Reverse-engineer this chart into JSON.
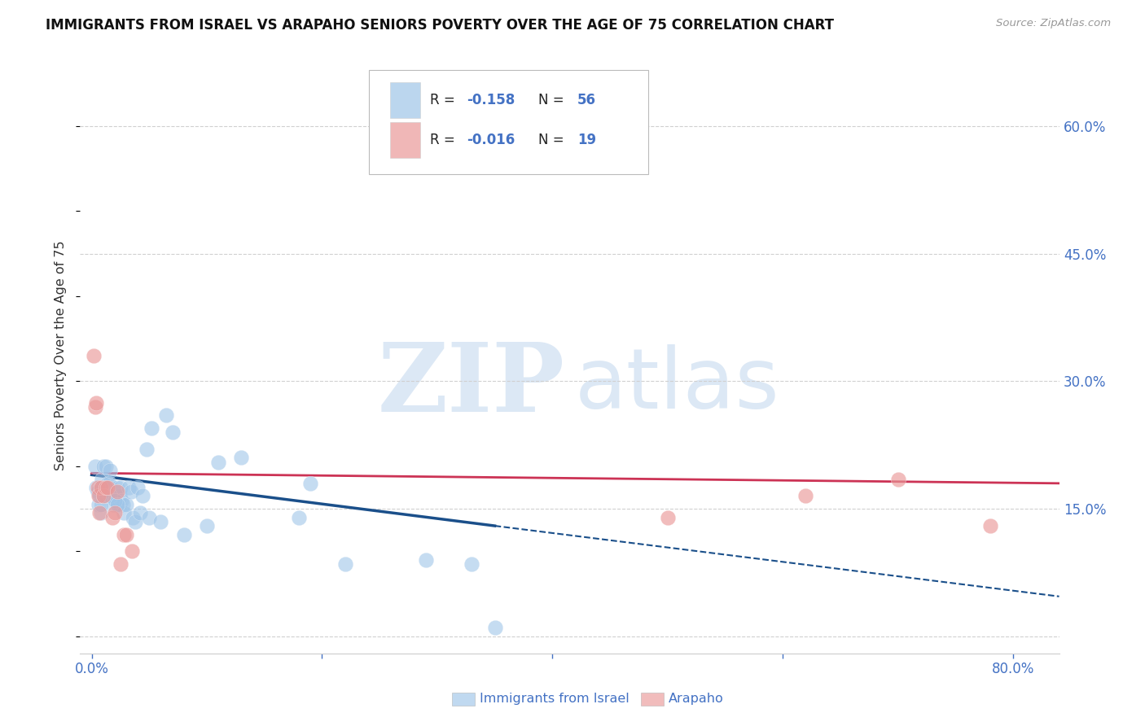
{
  "title": "IMMIGRANTS FROM ISRAEL VS ARAPAHO SENIORS POVERTY OVER THE AGE OF 75 CORRELATION CHART",
  "source": "Source: ZipAtlas.com",
  "ylabel": "Seniors Poverty Over the Age of 75",
  "legend_label1": "Immigrants from Israel",
  "legend_label2": "Arapaho",
  "xlim": [
    -0.01,
    0.84
  ],
  "ylim": [
    -0.02,
    0.68
  ],
  "xtick_positions": [
    0.0,
    0.2,
    0.4,
    0.6,
    0.8
  ],
  "xtick_labels": [
    "0.0%",
    "",
    "",
    "",
    "80.0%"
  ],
  "ytick_positions": [
    0.0,
    0.15,
    0.3,
    0.45,
    0.6
  ],
  "ytick_labels": [
    "",
    "15.0%",
    "30.0%",
    "45.0%",
    "60.0%"
  ],
  "blue_color": "#9fc5e8",
  "pink_color": "#ea9999",
  "trendline_blue": "#1a4f8a",
  "trendline_pink": "#cc3355",
  "blue_points_x": [
    0.003,
    0.004,
    0.005,
    0.006,
    0.007,
    0.008,
    0.009,
    0.01,
    0.011,
    0.012,
    0.013,
    0.014,
    0.015,
    0.016,
    0.017,
    0.018,
    0.019,
    0.02,
    0.021,
    0.022,
    0.023,
    0.024,
    0.025,
    0.026,
    0.027,
    0.028,
    0.03,
    0.032,
    0.034,
    0.036,
    0.038,
    0.04,
    0.042,
    0.044,
    0.048,
    0.05,
    0.052,
    0.06,
    0.065,
    0.07,
    0.08,
    0.1,
    0.11,
    0.13,
    0.18,
    0.19,
    0.22,
    0.29,
    0.33,
    0.35,
    0.008,
    0.01,
    0.012,
    0.016,
    0.02,
    0.022
  ],
  "blue_points_y": [
    0.2,
    0.175,
    0.17,
    0.155,
    0.165,
    0.145,
    0.185,
    0.2,
    0.17,
    0.2,
    0.175,
    0.18,
    0.18,
    0.195,
    0.165,
    0.165,
    0.155,
    0.17,
    0.16,
    0.175,
    0.155,
    0.165,
    0.175,
    0.16,
    0.155,
    0.145,
    0.155,
    0.175,
    0.17,
    0.14,
    0.135,
    0.175,
    0.145,
    0.165,
    0.22,
    0.14,
    0.245,
    0.135,
    0.26,
    0.24,
    0.12,
    0.13,
    0.205,
    0.21,
    0.14,
    0.18,
    0.085,
    0.09,
    0.085,
    0.01,
    0.155,
    0.165,
    0.165,
    0.165,
    0.16,
    0.155
  ],
  "pink_points_x": [
    0.002,
    0.003,
    0.004,
    0.005,
    0.006,
    0.007,
    0.008,
    0.01,
    0.012,
    0.014,
    0.018,
    0.02,
    0.022,
    0.025,
    0.028,
    0.03,
    0.035,
    0.5,
    0.62,
    0.7,
    0.78
  ],
  "pink_points_y": [
    0.33,
    0.27,
    0.275,
    0.175,
    0.165,
    0.145,
    0.175,
    0.165,
    0.175,
    0.175,
    0.14,
    0.145,
    0.17,
    0.085,
    0.12,
    0.12,
    0.1,
    0.14,
    0.165,
    0.185,
    0.13
  ],
  "blue_trend_x0": 0.0,
  "blue_trend_y0": 0.19,
  "blue_trend_x1": 0.35,
  "blue_trend_y1": 0.13,
  "blue_trend_ext_x1": 0.84,
  "blue_trend_ext_y1": 0.047,
  "pink_trend_x0": 0.0,
  "pink_trend_y0": 0.192,
  "pink_trend_x1": 0.84,
  "pink_trend_y1": 0.18,
  "grid_color": "#d0d0d0",
  "axis_tick_color": "#4472c4",
  "title_color": "#111111",
  "source_color": "#999999",
  "watermark_zip_color": "#dce8f5",
  "watermark_atlas_color": "#dce8f5",
  "bg_color": "#ffffff"
}
